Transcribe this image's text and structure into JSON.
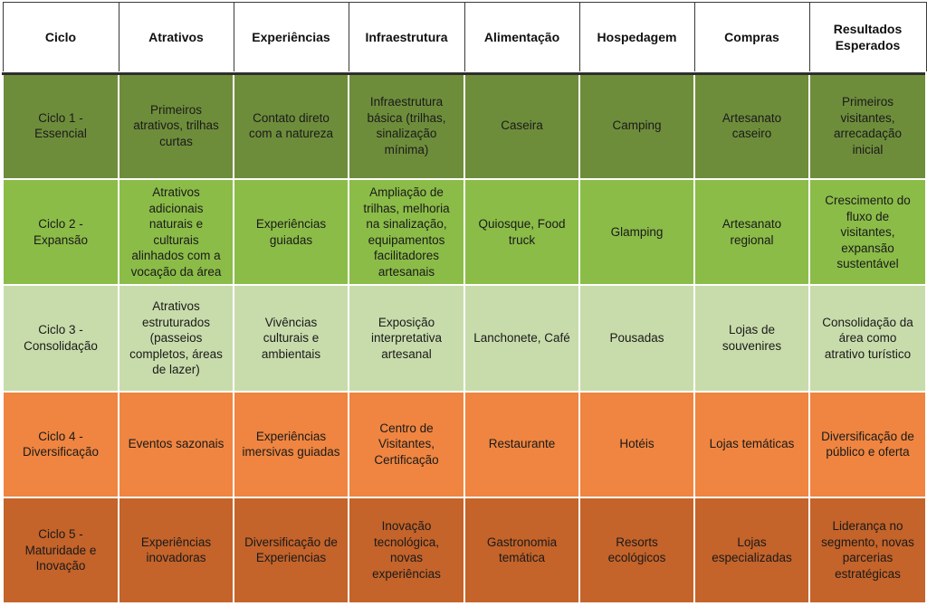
{
  "table": {
    "headers": [
      "Ciclo",
      "Atrativos",
      "Experiências",
      "Infraestrutura",
      "Alimentação",
      "Hospedagem",
      "Compras",
      "Resultados Esperados"
    ],
    "rows": [
      [
        "Ciclo 1 - Essencial",
        "Primeiros atrativos, trilhas curtas",
        "Contato direto com a natureza",
        "Infraestrutura básica (trilhas, sinalização mínima)",
        "Caseira",
        "Camping",
        "Artesanato caseiro",
        "Primeiros visitantes, arrecadação inicial"
      ],
      [
        "Ciclo 2 - Expansão",
        "Atrativos adicionais naturais e culturais alinhados com a vocação da área",
        "Experiências guiadas",
        "Ampliação de trilhas, melhoria na sinalização, equipamentos facilitadores artesanais",
        "Quiosque, Food truck",
        "Glamping",
        "Artesanato regional",
        "Crescimento do fluxo de visitantes, expansão sustentável"
      ],
      [
        "Ciclo 3 - Consolidação",
        "Atrativos estruturados (passeios completos, áreas de lazer)",
        "Vivências culturais e ambientais",
        "Exposição interpretativa artesanal",
        "Lanchonete, Café",
        "Pousadas",
        "Lojas de souvenires",
        "Consolidação da área como atrativo turístico"
      ],
      [
        "Ciclo 4 - Diversificação",
        "Eventos sazonais",
        "Experiências imersivas guiadas",
        "Centro de Visitantes, Certificação",
        "Restaurante",
        "Hotéis",
        "Lojas temáticas",
        "Diversificação de público e oferta"
      ],
      [
        "Ciclo 5 - Maturidade e Inovação",
        "Experiências inovadoras",
        "Diversificação de Experiencias",
        "Inovação tecnológica, novas experiências",
        "Gastronomia temática",
        "Resorts ecológicos",
        "Lojas especializadas",
        "Liderança no segmento, novas parcerias estratégicas"
      ]
    ]
  },
  "colors": {
    "ciclo1": "#6e8d3b",
    "ciclo2": "#8bbc48",
    "ciclo3": "#c8dcab",
    "ciclo4": "#ef8540",
    "ciclo5": "#c4632a"
  }
}
